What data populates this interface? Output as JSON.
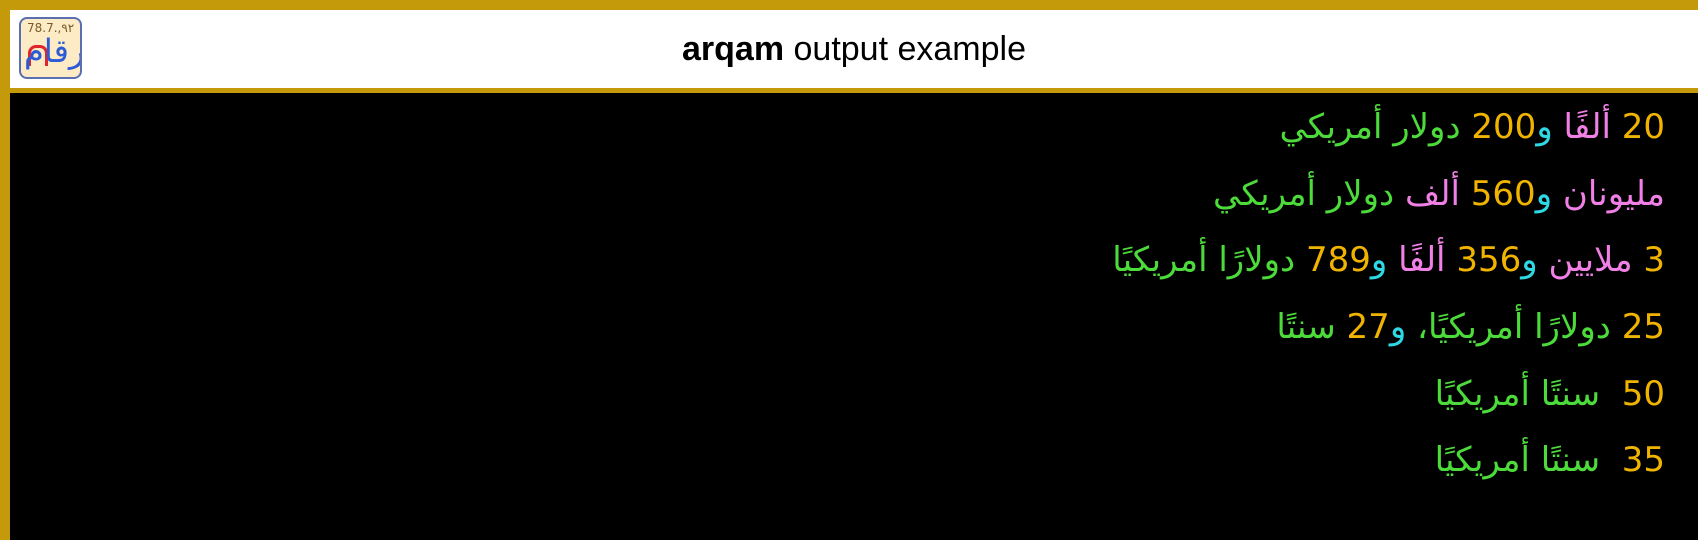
{
  "header": {
    "logo": {
      "digits": "78.7.,٩٢",
      "word": "أرقام"
    },
    "title_brand": "arqam",
    "title_rest": " output example"
  },
  "colors": {
    "frame": "#C49A0A",
    "number": "#F0B400",
    "magnitude": "#F07FE6",
    "conjunction": "#2ED8E4",
    "currency": "#4CDB3A"
  },
  "lines": [
    {
      "n1": "20",
      "m1": " ألفًا ",
      "c1": "و",
      "n2": "200",
      "cur": " دولار أمريكي"
    },
    {
      "m1": "مليونان ",
      "c1": "و",
      "n1": "560",
      "m2": " ألف",
      "cur": " دولار أمريكي"
    },
    {
      "n1": "3",
      "m1": " ملايين ",
      "c1": "و",
      "n2": "356",
      "m2": " ألفًا ",
      "c2": "و",
      "n3": "789",
      "cur": " دولارًا أمريكيًا"
    },
    {
      "n1": "25",
      "cur1": " دولارًا أمريكيًا، ",
      "c1": "و",
      "n2": "27",
      "cur2": " سنتًا"
    },
    {
      "n1": "50",
      "cur": "  سنتًا أمريكيًا"
    },
    {
      "n1": "35",
      "cur": "  سنتًا أمريكيًا"
    }
  ]
}
